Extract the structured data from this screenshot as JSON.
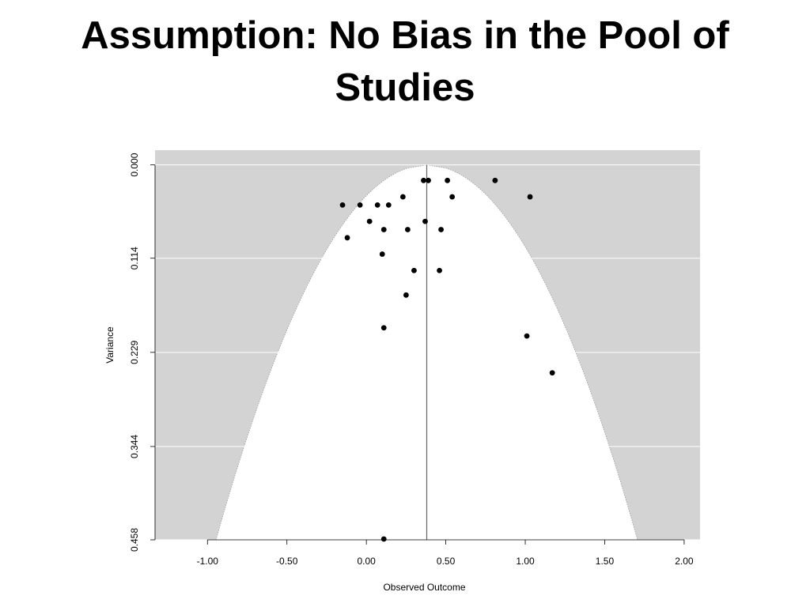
{
  "slide": {
    "title_line1": "Assumption: No Bias in the Pool of",
    "title_line2": "Studies"
  },
  "chart_data": {
    "type": "scatter",
    "subtype": "funnel-plot",
    "xlabel": "Observed Outcome",
    "ylabel": "Variance",
    "xlim": [
      -1.33,
      2.1
    ],
    "ylim": [
      0.458,
      -0.018
    ],
    "y_reversed": true,
    "x_ticks": [
      -1.0,
      -0.5,
      0.0,
      0.5,
      1.0,
      1.5,
      2.0
    ],
    "x_tick_labels": [
      "-1.00",
      "-0.50",
      "0.00",
      "0.50",
      "1.00",
      "1.50",
      "2.00"
    ],
    "y_ticks": [
      0.0,
      0.114,
      0.229,
      0.344,
      0.458
    ],
    "y_tick_labels": [
      "0.000",
      "0.114",
      "0.229",
      "0.344",
      "0.458"
    ],
    "reference_line_x": 0.38,
    "funnel_z": 1.96,
    "grid": "horizontal",
    "colors": {
      "outside_funnel": "#d3d3d3",
      "inside_funnel": "#ffffff",
      "points": "#000000",
      "reference_line": "#666666",
      "grid": "#ffffff"
    },
    "points": [
      {
        "x": -0.15,
        "y": 0.049
      },
      {
        "x": -0.04,
        "y": 0.049
      },
      {
        "x": 0.07,
        "y": 0.049
      },
      {
        "x": 0.14,
        "y": 0.049
      },
      {
        "x": 0.02,
        "y": 0.069
      },
      {
        "x": -0.12,
        "y": 0.089
      },
      {
        "x": 0.11,
        "y": 0.079
      },
      {
        "x": 0.26,
        "y": 0.079
      },
      {
        "x": 0.23,
        "y": 0.039
      },
      {
        "x": 0.37,
        "y": 0.069
      },
      {
        "x": 0.47,
        "y": 0.079
      },
      {
        "x": 0.36,
        "y": 0.019
      },
      {
        "x": 0.39,
        "y": 0.019
      },
      {
        "x": 0.51,
        "y": 0.019
      },
      {
        "x": 0.54,
        "y": 0.039
      },
      {
        "x": 0.81,
        "y": 0.019
      },
      {
        "x": 1.03,
        "y": 0.039
      },
      {
        "x": 0.1,
        "y": 0.109
      },
      {
        "x": 0.3,
        "y": 0.129
      },
      {
        "x": 0.46,
        "y": 0.129
      },
      {
        "x": 0.25,
        "y": 0.159
      },
      {
        "x": 0.11,
        "y": 0.199
      },
      {
        "x": 1.01,
        "y": 0.209
      },
      {
        "x": 1.17,
        "y": 0.254
      },
      {
        "x": 0.11,
        "y": 0.457
      }
    ]
  }
}
